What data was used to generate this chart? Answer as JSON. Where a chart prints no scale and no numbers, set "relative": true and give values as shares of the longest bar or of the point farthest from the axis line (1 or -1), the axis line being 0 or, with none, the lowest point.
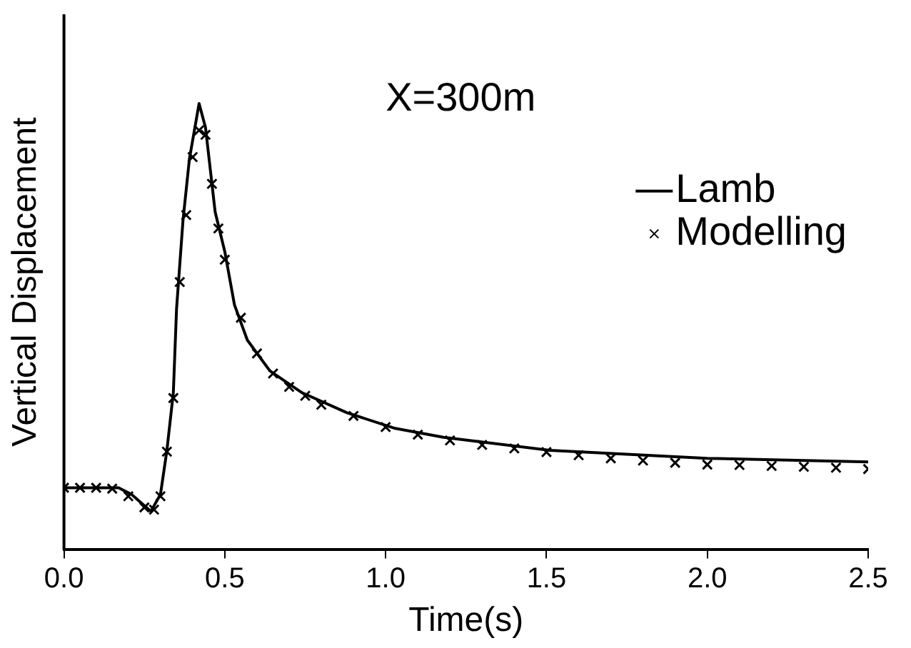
{
  "chart_data": {
    "type": "line",
    "relative": true,
    "xlabel": "Time(s)",
    "ylabel": "Vertical Displacement",
    "annotations": [
      "X=300m"
    ],
    "xlim": [
      0,
      2.5
    ],
    "xticks": [
      {
        "value": 0,
        "label": "0.0"
      },
      {
        "value": 0.5,
        "label": "0.5"
      },
      {
        "value": 1,
        "label": "1.0"
      },
      {
        "value": 1.5,
        "label": "1.5"
      },
      {
        "value": 2,
        "label": "2.0"
      },
      {
        "value": 2.5,
        "label": "2.5"
      }
    ],
    "grid": false,
    "legend": "right",
    "tick_labels": "x",
    "series": [
      {
        "name": "Lamb",
        "color": "#000000",
        "marker": "none",
        "line_style": "solid",
        "x": [
          0,
          0.17,
          0.21,
          0.27,
          0.3,
          0.32,
          0.34,
          0.35,
          0.37,
          0.39,
          0.42,
          0.44,
          0.47,
          0.5,
          0.53,
          0.57,
          0.64,
          0.74,
          0.88,
          1.03,
          1.18,
          1.51,
          2.0,
          2.5
        ],
        "values": [
          0.139,
          0.139,
          0.124,
          0.086,
          0.124,
          0.223,
          0.352,
          0.54,
          0.738,
          0.876,
          1,
          0.946,
          0.757,
          0.668,
          0.549,
          0.47,
          0.401,
          0.352,
          0.307,
          0.272,
          0.252,
          0.223,
          0.205,
          0.197
        ]
      },
      {
        "name": "Modelling",
        "type": "scatter",
        "color": "#000000",
        "marker": "cross",
        "x": [
          0,
          0.05,
          0.1,
          0.15,
          0.2,
          0.25,
          0.28,
          0.3,
          0.32,
          0.34,
          0.36,
          0.38,
          0.4,
          0.42,
          0.44,
          0.46,
          0.48,
          0.5,
          0.55,
          0.6,
          0.65,
          0.7,
          0.75,
          0.8,
          0.9,
          1.0,
          1.1,
          1.2,
          1.3,
          1.4,
          1.5,
          1.6,
          1.7,
          1.8,
          1.9,
          2.0,
          2.1,
          2.2,
          2.3,
          2.4,
          2.5
        ],
        "values": [
          0.139,
          0.139,
          0.139,
          0.137,
          0.12,
          0.095,
          0.09,
          0.12,
          0.22,
          0.34,
          0.6,
          0.75,
          0.88,
          0.94,
          0.93,
          0.82,
          0.72,
          0.65,
          0.52,
          0.44,
          0.395,
          0.365,
          0.345,
          0.325,
          0.3,
          0.275,
          0.258,
          0.245,
          0.235,
          0.227,
          0.219,
          0.212,
          0.205,
          0.2,
          0.195,
          0.191,
          0.19,
          0.188,
          0.186,
          0.184,
          0.181
        ]
      }
    ]
  }
}
